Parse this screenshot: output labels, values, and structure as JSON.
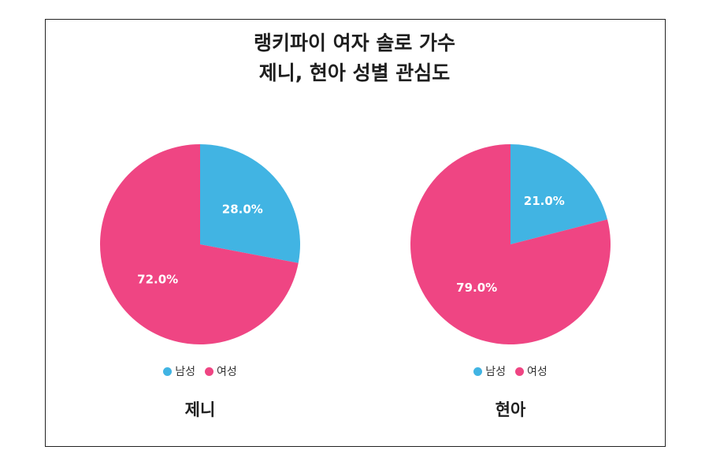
{
  "title_lines": [
    "랭키파이 여자 솔로 가수",
    "제니, 현아 성별 관심도"
  ],
  "colors": {
    "male": "#41b4e3",
    "female": "#ef4583"
  },
  "chart_data": [
    {
      "type": "pie",
      "name": "제니",
      "categories": [
        "남성",
        "여성"
      ],
      "values": [
        28.0,
        72.0
      ],
      "labels": [
        "28.0%",
        "72.0%"
      ],
      "legend": [
        "남성",
        "여성"
      ],
      "legend_placement": "bottom"
    },
    {
      "type": "pie",
      "name": "현아",
      "categories": [
        "남성",
        "여성"
      ],
      "values": [
        21.0,
        79.0
      ],
      "labels": [
        "21.0%",
        "79.0%"
      ],
      "legend": [
        "남성",
        "여성"
      ],
      "legend_placement": "bottom"
    }
  ]
}
